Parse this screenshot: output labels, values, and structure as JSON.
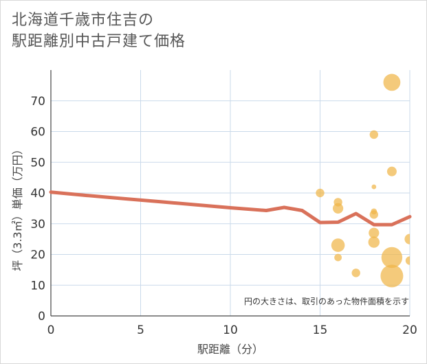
{
  "chart_data": {
    "type": "scatter",
    "title_lines": [
      "北海道千歳市住吉の",
      "駅距離別中古戸建て価格"
    ],
    "xlabel": "駅距離（分）",
    "ylabel": "坪（3.3㎡）単価（万円）",
    "xlim": [
      0,
      20
    ],
    "ylim": [
      0,
      80
    ],
    "x_ticks": [
      0,
      5,
      10,
      15,
      20
    ],
    "y_ticks": [
      0,
      10,
      20,
      30,
      40,
      50,
      60,
      70
    ],
    "grid": true,
    "annotation": "円の大きさは、取引のあった物件面積を示す",
    "colors": {
      "bubble": "#f0b548",
      "trend": "#d9715a",
      "grid": "#c9d9ea",
      "axis": "#444444"
    },
    "bubbles": [
      {
        "x": 15,
        "y": 40,
        "size": 2
      },
      {
        "x": 16,
        "y": 37,
        "size": 2
      },
      {
        "x": 16,
        "y": 35,
        "size": 3
      },
      {
        "x": 16,
        "y": 23,
        "size": 5
      },
      {
        "x": 16,
        "y": 19,
        "size": 1.5
      },
      {
        "x": 17,
        "y": 14,
        "size": 2
      },
      {
        "x": 18,
        "y": 59,
        "size": 2
      },
      {
        "x": 18,
        "y": 42,
        "size": 0.6
      },
      {
        "x": 18,
        "y": 34,
        "size": 1
      },
      {
        "x": 18,
        "y": 33,
        "size": 2
      },
      {
        "x": 18,
        "y": 27,
        "size": 3
      },
      {
        "x": 18,
        "y": 24,
        "size": 3.5
      },
      {
        "x": 19,
        "y": 76,
        "size": 8
      },
      {
        "x": 19,
        "y": 47,
        "size": 2.5
      },
      {
        "x": 19,
        "y": 19,
        "size": 12
      },
      {
        "x": 19,
        "y": 13,
        "size": 14
      },
      {
        "x": 20,
        "y": 25,
        "size": 3
      },
      {
        "x": 20,
        "y": 18,
        "size": 2
      }
    ],
    "trend_line": [
      {
        "x": 0,
        "y": 40.3
      },
      {
        "x": 2,
        "y": 39.2
      },
      {
        "x": 4,
        "y": 38.2
      },
      {
        "x": 6,
        "y": 37.2
      },
      {
        "x": 8,
        "y": 36.2
      },
      {
        "x": 10,
        "y": 35.2
      },
      {
        "x": 12,
        "y": 34.3
      },
      {
        "x": 13,
        "y": 35.3
      },
      {
        "x": 14,
        "y": 34.3
      },
      {
        "x": 15,
        "y": 30.4
      },
      {
        "x": 16,
        "y": 30.5
      },
      {
        "x": 17,
        "y": 33.3
      },
      {
        "x": 18,
        "y": 29.7
      },
      {
        "x": 19,
        "y": 29.7
      },
      {
        "x": 20,
        "y": 32.3
      }
    ]
  }
}
